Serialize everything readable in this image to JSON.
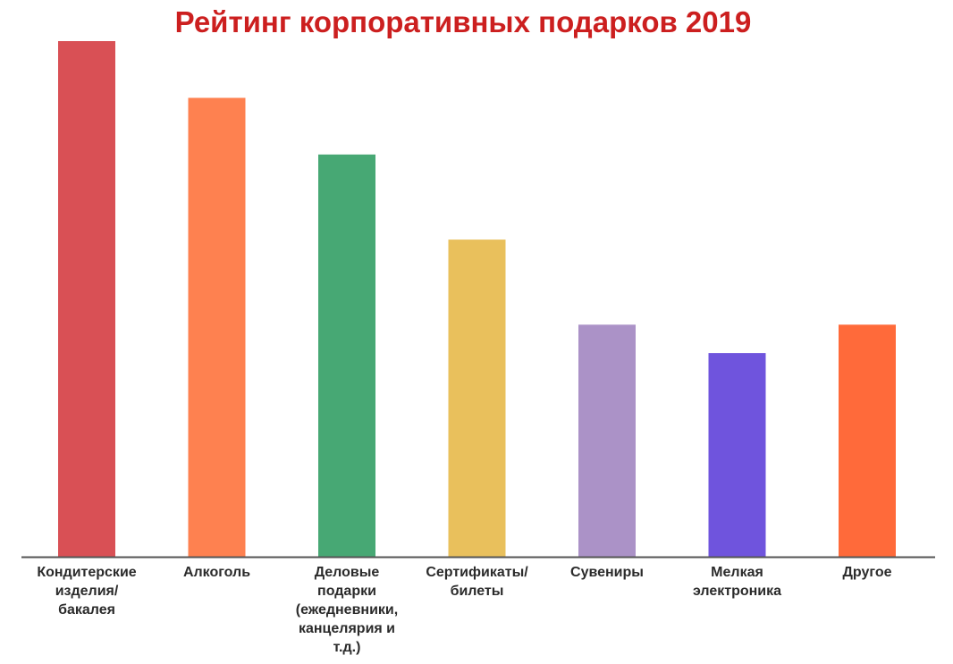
{
  "chart_data": {
    "type": "bar",
    "title": "Рейтинг корпоративных подарков 2019",
    "categories": [
      "Кондитерские изделия/ бакалея",
      "Алкоголь",
      "Деловые подарки (ежедневники, канцелярия и т.д.)",
      "Сертификаты/ билеты",
      "Сувениры",
      "Мелкая электроника",
      "Другое"
    ],
    "category_lines": [
      [
        "Кондитерские",
        "изделия/",
        "бакалея"
      ],
      [
        "Алкоголь"
      ],
      [
        "Деловые",
        "подарки",
        "(ежедневники,",
        "канцелярия и",
        "т.д.)"
      ],
      [
        "Сертификаты/",
        "билеты"
      ],
      [
        "Сувениры"
      ],
      [
        "Мелкая",
        "электроника"
      ],
      [
        "Другое"
      ]
    ],
    "values": [
      100,
      89,
      78,
      61.5,
      45,
      39.5,
      45
    ],
    "colors": [
      "#d95055",
      "#fe8150",
      "#47a874",
      "#e9c05c",
      "#ab92c7",
      "#6f54dd",
      "#ff6a3a"
    ],
    "axis_color": "#555555",
    "ylim": [
      0,
      100
    ],
    "xlabel": "",
    "ylabel": "",
    "grid": false,
    "legend": "none"
  }
}
